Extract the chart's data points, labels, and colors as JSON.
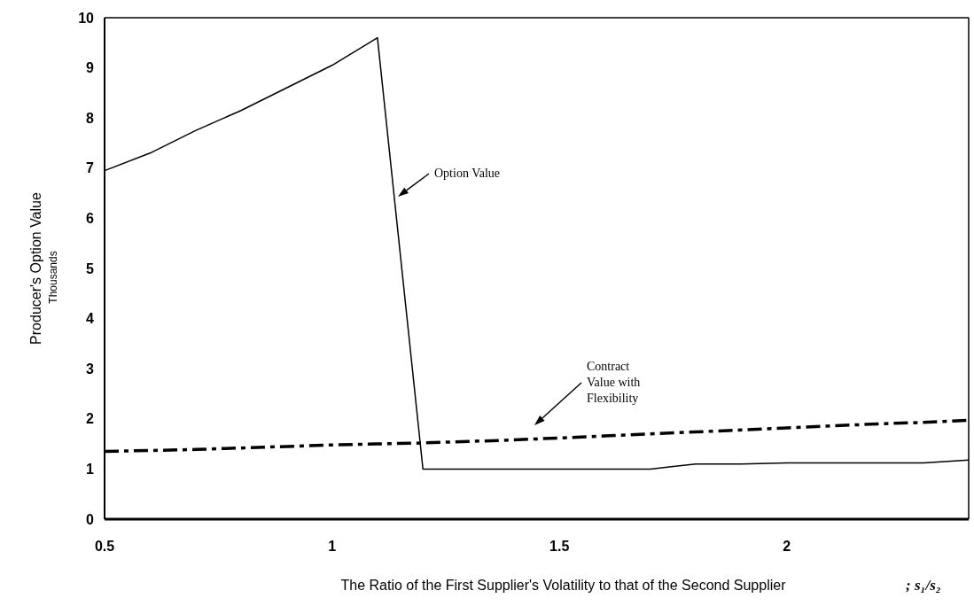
{
  "chart_data": {
    "type": "line",
    "xlabel": "The Ratio of the First Supplier's Volatility to that of the Second Supplier",
    "ylabel": "Producer's Option Value",
    "x": [
      0.5,
      0.6,
      0.7,
      0.8,
      0.9,
      1.0,
      1.1,
      1.2,
      1.3,
      1.4,
      1.5,
      1.6,
      1.7,
      1.8,
      1.9,
      2.0,
      2.1,
      2.2,
      2.3,
      2.4
    ],
    "series": [
      {
        "color": "#000000",
        "line_style": "solid",
        "values": [
          6.95,
          7.3,
          7.75,
          8.15,
          8.6,
          9.05,
          9.6,
          1.0,
          1.0,
          1.0,
          1.0,
          1.0,
          1.0,
          1.1,
          1.1,
          1.12,
          1.12,
          1.12,
          1.12,
          1.18
        ]
      },
      {
        "color": "#000000",
        "line_style": "dashed",
        "values": [
          1.35,
          1.37,
          1.39,
          1.42,
          1.45,
          1.48,
          1.5,
          1.52,
          1.55,
          1.58,
          1.62,
          1.66,
          1.7,
          1.74,
          1.78,
          1.82,
          1.86,
          1.9,
          1.93,
          1.97
        ]
      }
    ],
    "xlim": [
      0.5,
      2.4
    ],
    "ylim": [
      0,
      10
    ],
    "xticks": [
      0.5,
      1,
      1.5,
      2
    ],
    "yticks": [
      0,
      1,
      2,
      3,
      4,
      5,
      6,
      7,
      8,
      9,
      10
    ],
    "grid": false,
    "marker": "none",
    "annotations": [
      "Thousands",
      "; s₁/s₂",
      "Option Value",
      "Contract Value with Flexibility"
    ]
  }
}
